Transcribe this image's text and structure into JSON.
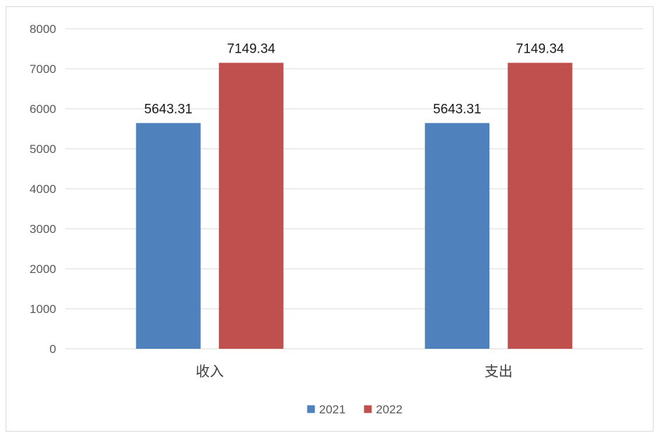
{
  "chart_data": {
    "type": "bar",
    "categories": [
      "收入",
      "支出"
    ],
    "series": [
      {
        "name": "2021",
        "values": [
          5643.31,
          5643.31
        ],
        "color": "#4F81BD"
      },
      {
        "name": "2022",
        "values": [
          7149.34,
          7149.34
        ],
        "color": "#C0504D"
      }
    ],
    "title": "",
    "xlabel": "",
    "ylabel": "",
    "ylim": [
      0,
      8000
    ],
    "yticks": [
      0,
      1000,
      2000,
      3000,
      4000,
      5000,
      6000,
      7000,
      8000
    ],
    "ytick_labels": [
      "0",
      "1000",
      "2000",
      "3000",
      "4000",
      "5000",
      "6000",
      "7000",
      "8000"
    ],
    "data_labels": [
      [
        "5643.31",
        "5643.31"
      ],
      [
        "7149.34",
        "7149.34"
      ]
    ],
    "grid": true,
    "legend_position": "bottom",
    "gridline_color": "#D9D9D9"
  }
}
